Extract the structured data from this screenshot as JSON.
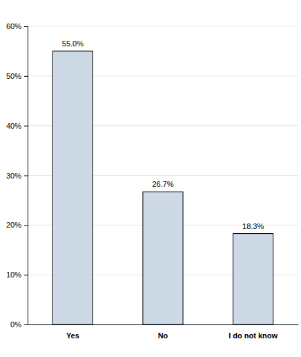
{
  "chart_data": {
    "type": "bar",
    "categories": [
      "Yes",
      "No",
      "I do not know"
    ],
    "values": [
      55,
      26.7,
      18.3
    ],
    "value_labels": [
      "55.0%",
      "26.7%",
      "18.3%"
    ],
    "color": "#cdd9e5",
    "ylim": [
      0,
      60
    ],
    "yticks": [
      {
        "value": 0,
        "label": "0%"
      },
      {
        "value": 10,
        "label": "10%"
      },
      {
        "value": 20,
        "label": "20%"
      },
      {
        "value": 30,
        "label": "30%"
      },
      {
        "value": 40,
        "label": "40%"
      },
      {
        "value": 50,
        "label": "50%"
      },
      {
        "value": 60,
        "label": "60%"
      }
    ],
    "grid": true,
    "data_labels": true
  }
}
